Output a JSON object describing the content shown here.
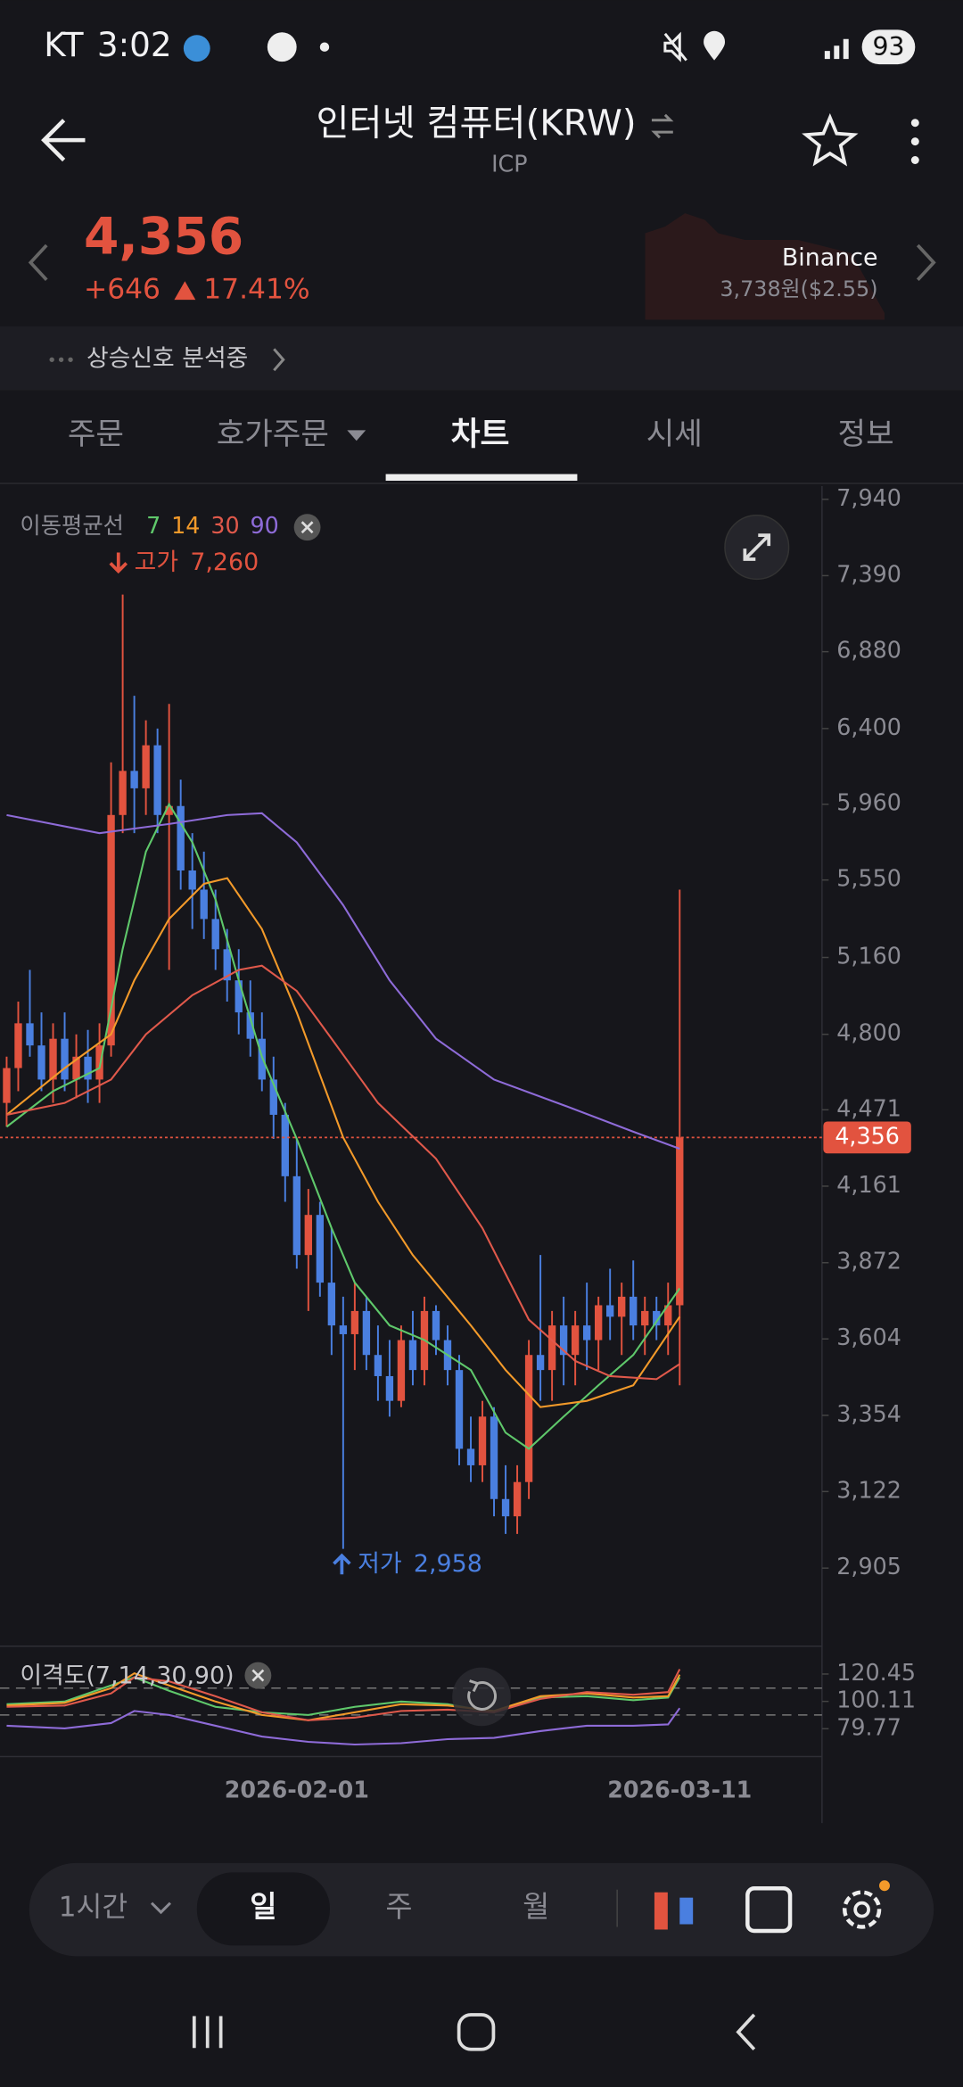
{
  "status_bar": {
    "carrier": "KT",
    "time": "3:02",
    "battery": "93"
  },
  "header": {
    "title": "인터넷 컴퓨터(KRW)",
    "symbol": "ICP"
  },
  "ticker": {
    "price": "4,356",
    "change": "+646",
    "change_rate": "17.41%",
    "exchange": "Binance",
    "exchange_price": "3,738원($2.55)"
  },
  "signal": "상승신호 분석중",
  "tabs": [
    "주문",
    "호가주문",
    "차트",
    "시세",
    "정보"
  ],
  "chart_data": [
    {
      "type": "candlestick",
      "log_scale": true,
      "ylim": [
        2706,
        8040
      ],
      "yticks": [
        {
          "value": 7940,
          "label": "7,940"
        },
        {
          "value": 7390,
          "label": "7,390"
        },
        {
          "value": 6880,
          "label": "6,880"
        },
        {
          "value": 6400,
          "label": "6,400"
        },
        {
          "value": 5960,
          "label": "5,960"
        },
        {
          "value": 5550,
          "label": "5,550"
        },
        {
          "value": 5160,
          "label": "5,160"
        },
        {
          "value": 4800,
          "label": "4,800"
        },
        {
          "value": 4471,
          "label": "4,471"
        },
        {
          "value": 4161,
          "label": "4,161"
        },
        {
          "value": 3872,
          "label": "3,872"
        },
        {
          "value": 3604,
          "label": "3,604"
        },
        {
          "value": 3354,
          "label": "3,354"
        },
        {
          "value": 3122,
          "label": "3,122"
        },
        {
          "value": 2905,
          "label": "2,905"
        }
      ],
      "up_color": "#e2533f",
      "down_color": "#4a7fe0",
      "open": [
        4500,
        4650,
        4850,
        4750,
        4600,
        4780,
        4600,
        4700,
        4600,
        4750,
        5900,
        6150,
        6050,
        6300,
        5900,
        5950,
        5600,
        5500,
        5350,
        5200,
        5050,
        4900,
        4780,
        4600,
        4450,
        4200,
        3900,
        4050,
        3800,
        3650,
        3620,
        3700,
        3550,
        3480,
        3400,
        3600,
        3500,
        3700,
        3600,
        3500,
        3250,
        3200,
        3350,
        3100,
        3050,
        3150,
        3550,
        3500,
        3650,
        3550,
        3650,
        3600,
        3720,
        3680,
        3750,
        3650,
        3700,
        3650,
        3720
      ],
      "high": [
        4700,
        4950,
        5100,
        4900,
        4850,
        4900,
        4800,
        4820,
        4850,
        6200,
        7260,
        6600,
        6450,
        6400,
        6550,
        6100,
        5800,
        5700,
        5500,
        5300,
        5200,
        5050,
        4900,
        4700,
        4500,
        4350,
        4150,
        4100,
        4000,
        3750,
        3800,
        3750,
        3650,
        3600,
        3650,
        3700,
        3750,
        3720,
        3650,
        3550,
        3350,
        3400,
        3380,
        3200,
        3200,
        3600,
        3900,
        3700,
        3750,
        3700,
        3800,
        3750,
        3850,
        3800,
        3880,
        3750,
        3750,
        3800,
        5500
      ],
      "low": [
        4400,
        4550,
        4700,
        4550,
        4500,
        4550,
        4520,
        4500,
        4500,
        4700,
        5800,
        5800,
        5900,
        5800,
        5100,
        5500,
        5300,
        5250,
        5100,
        4950,
        4800,
        4700,
        4550,
        4350,
        4100,
        3850,
        3700,
        3750,
        3550,
        2958,
        3500,
        3500,
        3400,
        3350,
        3380,
        3450,
        3450,
        3550,
        3450,
        3200,
        3150,
        3150,
        3050,
        3000,
        3000,
        3100,
        3400,
        3400,
        3450,
        3450,
        3500,
        3500,
        3600,
        3550,
        3600,
        3550,
        3600,
        3550,
        3450
      ],
      "close": [
        4650,
        4850,
        4750,
        4600,
        4780,
        4600,
        4700,
        4600,
        4750,
        5900,
        6150,
        6050,
        6300,
        5900,
        5950,
        5600,
        5500,
        5350,
        5200,
        5050,
        4900,
        4780,
        4600,
        4450,
        4200,
        3900,
        4050,
        3800,
        3650,
        3620,
        3700,
        3550,
        3480,
        3400,
        3600,
        3500,
        3700,
        3600,
        3500,
        3250,
        3200,
        3350,
        3100,
        3050,
        3150,
        3550,
        3500,
        3650,
        3550,
        3650,
        3600,
        3720,
        3680,
        3750,
        3650,
        3700,
        3650,
        3720,
        4356
      ],
      "legend_title": "이동평균선",
      "series": [
        {
          "name": "7",
          "color": "#5fc86b",
          "x": [
            0,
            4,
            8,
            10,
            12,
            14,
            16,
            18,
            20,
            22,
            25,
            28,
            30,
            33,
            36,
            40,
            43,
            45,
            48,
            51,
            54,
            58
          ],
          "values": [
            4400,
            4550,
            4650,
            5200,
            5700,
            5960,
            5750,
            5450,
            5050,
            4700,
            4350,
            4000,
            3800,
            3650,
            3600,
            3500,
            3300,
            3250,
            3350,
            3450,
            3550,
            3780
          ]
        },
        {
          "name": "14",
          "color": "#f39a2a",
          "x": [
            0,
            5,
            9,
            11,
            14,
            17,
            19,
            22,
            25,
            29,
            32,
            35,
            40,
            43,
            46,
            50,
            54,
            58
          ],
          "values": [
            4450,
            4650,
            4800,
            5050,
            5350,
            5530,
            5560,
            5300,
            4900,
            4356,
            4100,
            3900,
            3650,
            3500,
            3380,
            3400,
            3450,
            3680
          ]
        },
        {
          "name": "30",
          "color": "#e0594b",
          "x": [
            0,
            5,
            9,
            12,
            16,
            20,
            22,
            25,
            28,
            32,
            37,
            41,
            45,
            49,
            52,
            56,
            58
          ],
          "values": [
            4450,
            4500,
            4600,
            4800,
            4980,
            5100,
            5120,
            5000,
            4780,
            4500,
            4270,
            4000,
            3670,
            3530,
            3480,
            3470,
            3520
          ]
        },
        {
          "name": "90",
          "color": "#8e6bd8",
          "x": [
            0,
            8,
            14,
            19,
            22,
            25,
            29,
            33,
            37,
            42,
            48,
            54,
            58
          ],
          "values": [
            5900,
            5800,
            5850,
            5900,
            5910,
            5750,
            5420,
            5050,
            4780,
            4600,
            4490,
            4380,
            4310
          ]
        }
      ],
      "last_price": {
        "value": 4356,
        "label": "4,356"
      },
      "annotations": [
        {
          "text": "고가",
          "value": 7260,
          "label": "7,260"
        },
        {
          "text": "저가",
          "value": 2958,
          "label": "2,958"
        }
      ]
    },
    {
      "type": "line",
      "title": "이격도(7,14,30,90)",
      "ylim": [
        61,
        138.2
      ],
      "yticks": [
        120.45,
        100.11,
        79.77
      ],
      "reference_lines": [
        110,
        90
      ],
      "categories": [
        null,
        null,
        null,
        null,
        null,
        null,
        null,
        null,
        null,
        null,
        null,
        null,
        null,
        null,
        null,
        null,
        null,
        null,
        null,
        null,
        null,
        null,
        null,
        null,
        null,
        "2026-02-01",
        null,
        null,
        null,
        null,
        null,
        null,
        null,
        null,
        null,
        null,
        null,
        null,
        null,
        null,
        null,
        null,
        null,
        null,
        null,
        null,
        null,
        null,
        null,
        null,
        null,
        null,
        null,
        null,
        null,
        null,
        null,
        null,
        "2026-03-11"
      ],
      "series": [
        {
          "color": "#5fc86b",
          "x": [
            0,
            5,
            9,
            11,
            14,
            18,
            22,
            26,
            30,
            34,
            38,
            42,
            46,
            50,
            54,
            57,
            58
          ],
          "values": [
            98,
            100,
            112,
            118,
            108,
            96,
            92,
            90,
            96,
            100,
            98,
            92,
            103,
            104,
            101,
            103,
            118
          ]
        },
        {
          "color": "#f39a2a",
          "x": [
            0,
            5,
            9,
            11,
            14,
            18,
            22,
            26,
            30,
            34,
            38,
            42,
            46,
            50,
            54,
            57,
            58
          ],
          "values": [
            97,
            99,
            110,
            121,
            112,
            100,
            90,
            86,
            92,
            98,
            97,
            93,
            104,
            106,
            103,
            104,
            120
          ]
        },
        {
          "color": "#e0594b",
          "x": [
            0,
            5,
            9,
            11,
            14,
            18,
            22,
            26,
            30,
            34,
            38,
            42,
            46,
            50,
            54,
            57,
            58
          ],
          "values": [
            96,
            97,
            106,
            118,
            115,
            104,
            92,
            86,
            88,
            93,
            94,
            92,
            102,
            107,
            105,
            107,
            124
          ]
        },
        {
          "color": "#8e6bd8",
          "x": [
            0,
            5,
            9,
            11,
            14,
            18,
            22,
            26,
            30,
            34,
            38,
            42,
            46,
            50,
            54,
            57,
            58
          ],
          "values": [
            82,
            80,
            84,
            93,
            90,
            82,
            74,
            70,
            68,
            69,
            72,
            73,
            78,
            82,
            82,
            83,
            95
          ]
        }
      ]
    }
  ],
  "bottom_bar": {
    "intervals": [
      "1시간",
      "일",
      "주",
      "월"
    ]
  }
}
